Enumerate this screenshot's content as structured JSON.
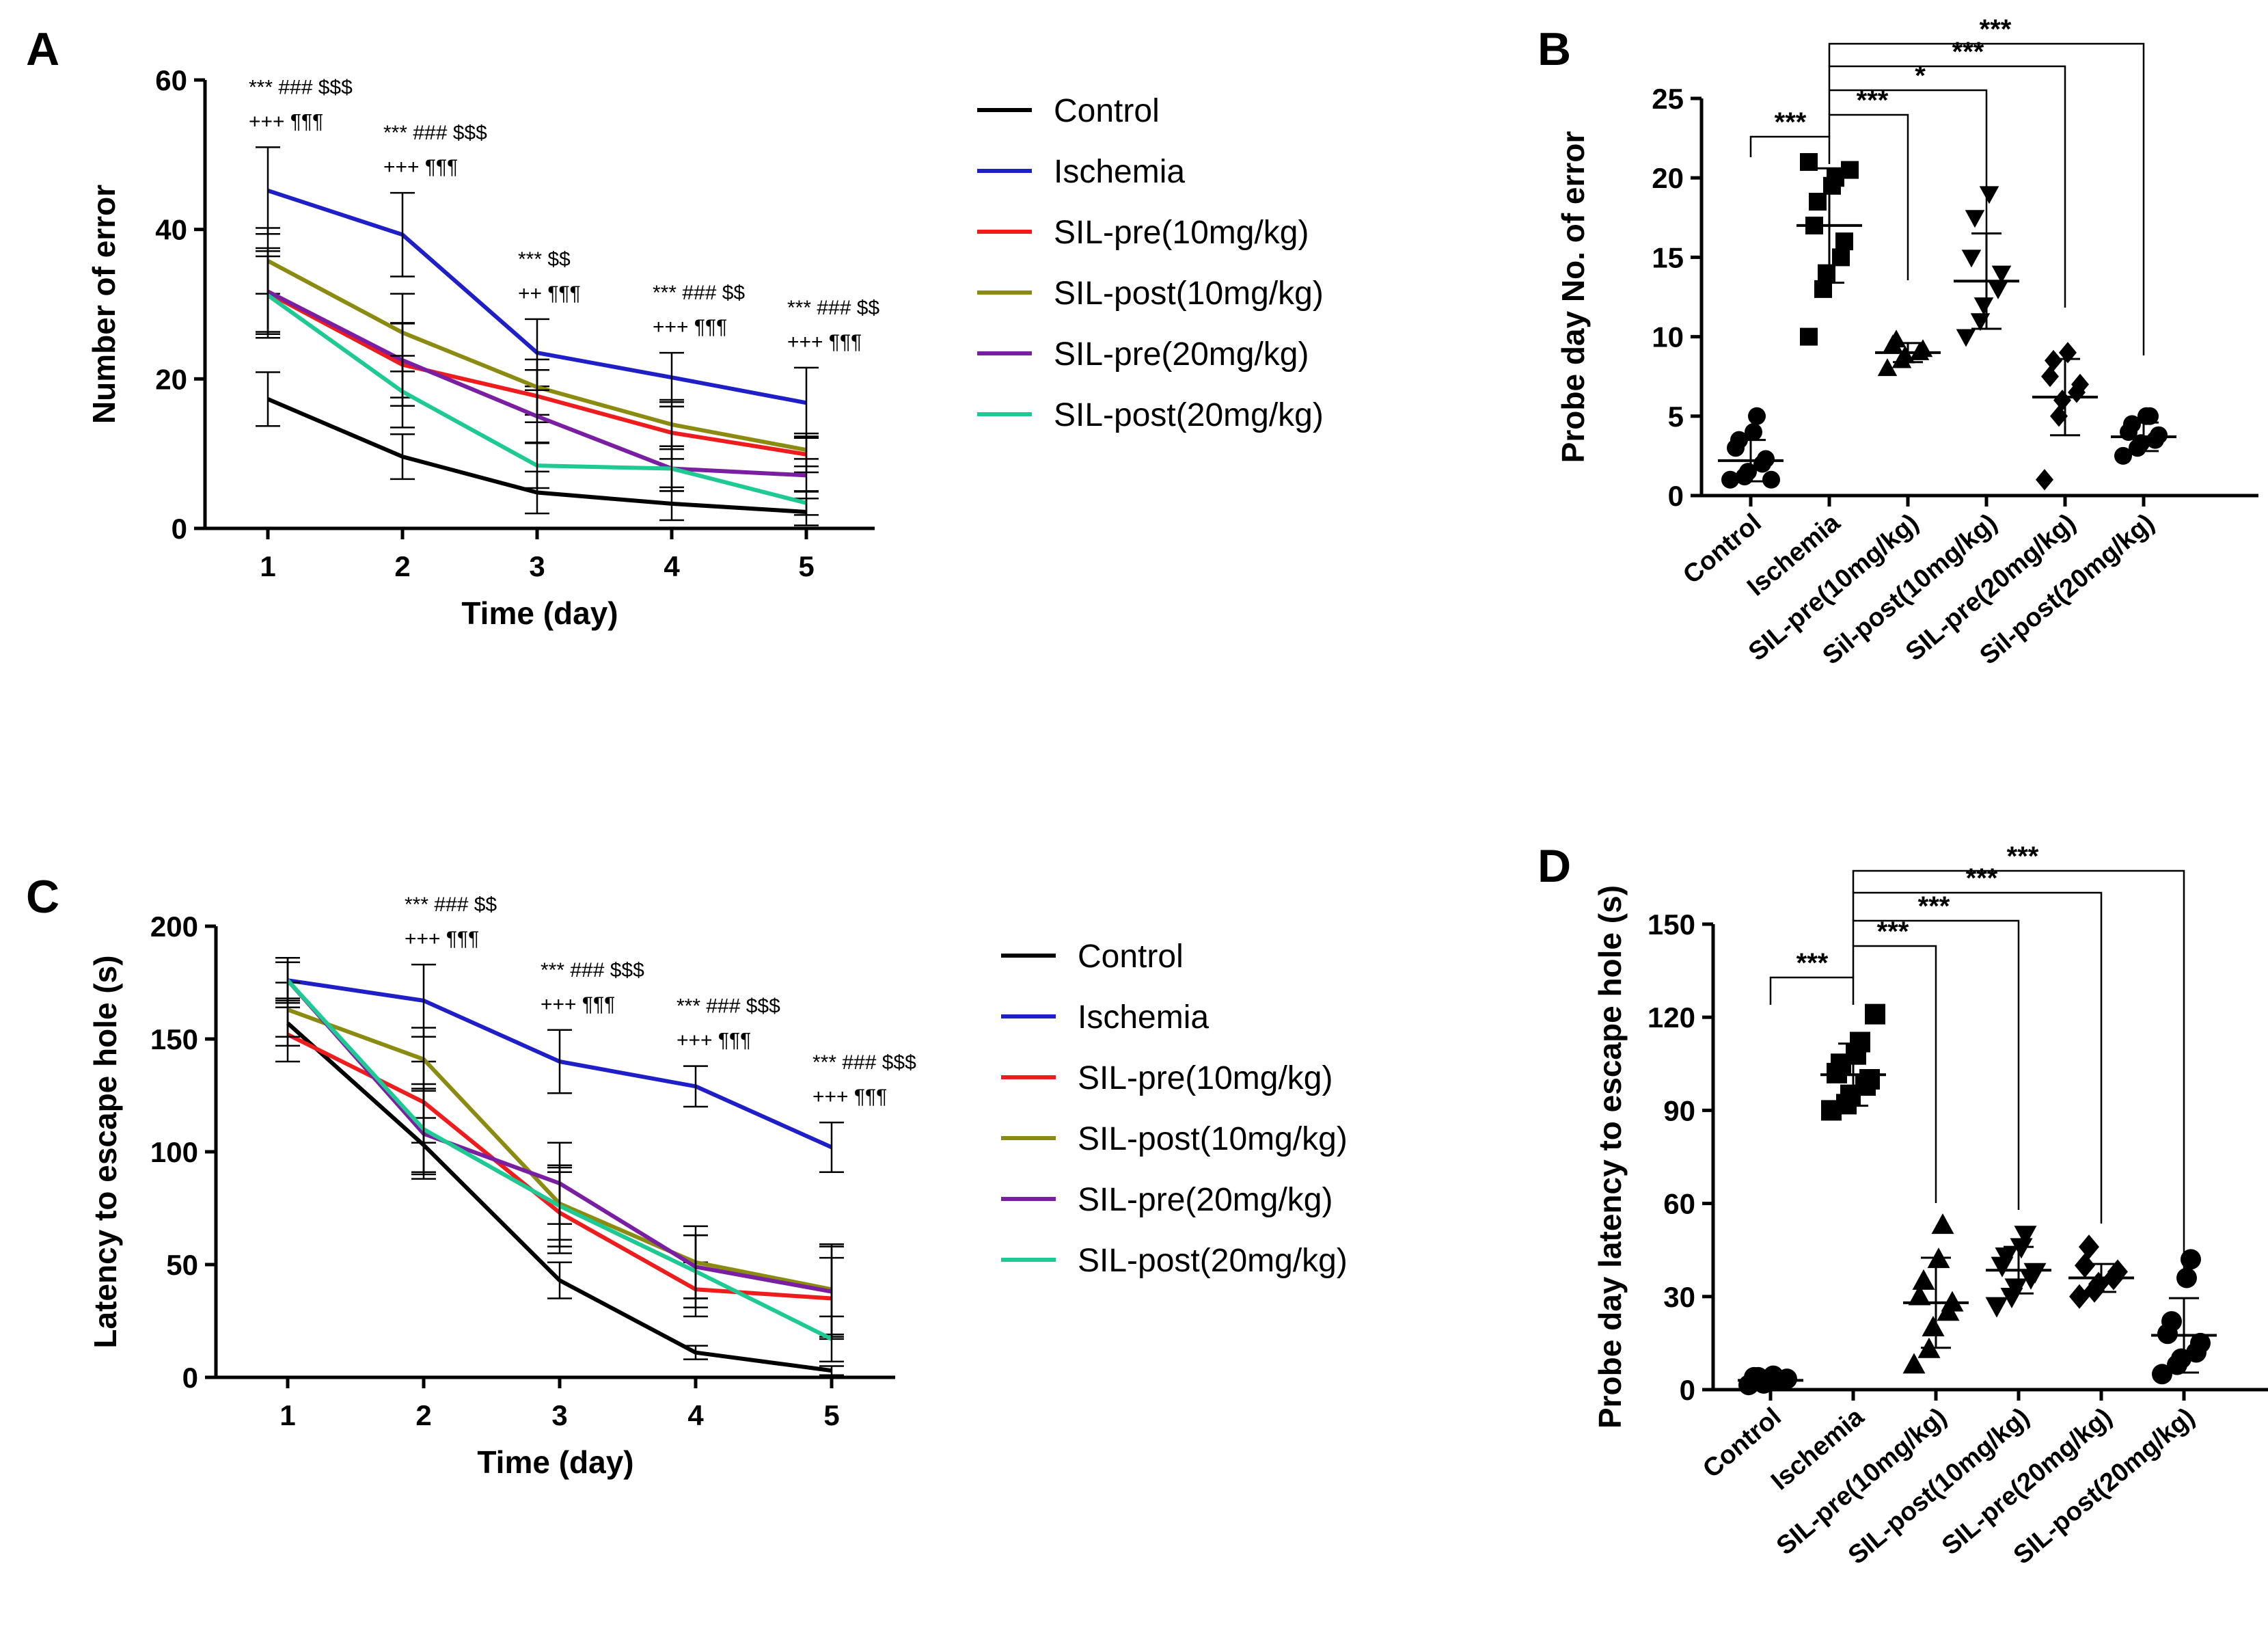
{
  "figure": {
    "panels": [
      "A",
      "B",
      "C",
      "D"
    ]
  },
  "colors": {
    "Control": "#000000",
    "Ischemia": "#1f1fc8",
    "SIL-pre(10mg/kg)": "#ee1c1c",
    "SIL-post(10mg/kg)": "#8b8b12",
    "SIL-pre(20mg/kg)": "#7b1fa2",
    "SIL-post(20mg/kg)": "#1ec993"
  },
  "chart_data": [
    {
      "panel": "A",
      "type": "line",
      "xlabel": "Time (day)",
      "ylabel": "Number of error",
      "ylim": [
        0,
        60
      ],
      "yticks": [
        0,
        20,
        40,
        60
      ],
      "x": [
        1,
        2,
        3,
        4,
        5
      ],
      "legend_position": "right",
      "series": [
        {
          "name": "Control",
          "values": [
            17.3,
            9.6,
            4.8,
            3.3,
            2.2
          ],
          "errors": [
            3.6,
            3.0,
            2.8,
            2.2,
            1.8
          ]
        },
        {
          "name": "Ischemia",
          "values": [
            45.2,
            39.3,
            23.5,
            20.2,
            16.8
          ],
          "errors": [
            5.8,
            5.6,
            4.5,
            3.3,
            4.7
          ]
        },
        {
          "name": "SIL-pre(10mg/kg)",
          "values": [
            31.5,
            21.9,
            17.7,
            12.8,
            9.9
          ],
          "errors": [
            6.0,
            5.5,
            3.5,
            3.5,
            2.4
          ]
        },
        {
          "name": "SIL-post(10mg/kg)",
          "values": [
            35.8,
            26.2,
            18.9,
            13.9,
            10.5
          ],
          "errors": [
            4.4,
            5.2,
            3.7,
            3.3,
            2.2
          ]
        },
        {
          "name": "SIL-pre(20mg/kg)",
          "values": [
            31.7,
            22.5,
            15.0,
            8.0,
            7.1
          ],
          "errors": [
            5.4,
            5.0,
            3.5,
            3.0,
            2.2
          ]
        },
        {
          "name": "SIL-post(20mg/kg)",
          "values": [
            31.2,
            18.3,
            8.4,
            8.0,
            3.4
          ],
          "errors": [
            5.2,
            4.8,
            3.0,
            3.0,
            1.6
          ]
        }
      ],
      "annotations": [
        {
          "x": 1,
          "line1": "*** ### $$$",
          "line2": "+++ ¶¶¶"
        },
        {
          "x": 2,
          "line1": "*** ### $$$",
          "line2": "+++ ¶¶¶"
        },
        {
          "x": 3,
          "line1": "*** $$",
          "line2": "++ ¶¶¶"
        },
        {
          "x": 4,
          "line1": "*** ### $$",
          "line2": "+++ ¶¶¶"
        },
        {
          "x": 5,
          "line1": "*** ### $$",
          "line2": "+++ ¶¶¶"
        }
      ]
    },
    {
      "panel": "B",
      "type": "scatter",
      "ylabel": "Probe day No. of error",
      "ylim": [
        0,
        25
      ],
      "yticks": [
        0,
        5,
        10,
        15,
        20,
        25
      ],
      "categories": [
        "Control",
        "Ischemia",
        "SIL-pre(10mg/kg)",
        "Sil-post(10mg/kg)",
        "SIL-pre(20mg/kg)",
        "Sil-post(20mg/kg)"
      ],
      "markers": [
        "circle",
        "square",
        "triangle-up",
        "triangle-down",
        "diamond",
        "circle"
      ],
      "means": [
        2.2,
        17.0,
        9.0,
        13.5,
        6.2,
        3.7
      ],
      "sd": [
        1.3,
        3.6,
        0.6,
        3.0,
        2.4,
        0.9
      ],
      "points": [
        [
          1.0,
          1.2,
          1.5,
          2.0,
          2.3,
          3.0,
          3.5,
          4.0,
          5.0,
          1.0
        ],
        [
          10.0,
          13.0,
          14.0,
          15.0,
          16.0,
          17.0,
          18.5,
          19.5,
          20.0,
          20.5,
          21.0
        ],
        [
          8.0,
          8.5,
          8.8,
          9.0,
          9.2,
          9.5,
          9.8
        ],
        [
          10.0,
          11.0,
          12.0,
          13.0,
          14.0,
          15.0,
          17.5,
          19.0
        ],
        [
          1.0,
          5.0,
          6.0,
          6.5,
          7.0,
          7.5,
          8.5,
          9.0
        ],
        [
          2.5,
          3.0,
          3.3,
          3.5,
          3.8,
          4.0,
          4.5,
          5.0,
          5.0
        ]
      ],
      "comparisons": [
        {
          "from": 0,
          "to": 1,
          "label": "***"
        },
        {
          "from": 1,
          "to": 2,
          "label": "***"
        },
        {
          "from": 1,
          "to": 3,
          "label": "*"
        },
        {
          "from": 1,
          "to": 4,
          "label": "***"
        },
        {
          "from": 1,
          "to": 5,
          "label": "***"
        }
      ]
    },
    {
      "panel": "C",
      "type": "line",
      "xlabel": "Time (day)",
      "ylabel": "Latency to escape hole (s)",
      "ylim": [
        0,
        200
      ],
      "yticks": [
        0,
        50,
        100,
        150,
        200
      ],
      "x": [
        1,
        2,
        3,
        4,
        5
      ],
      "legend_position": "right",
      "series": [
        {
          "name": "Control",
          "values": [
            157,
            103,
            43,
            11,
            3
          ],
          "errors": [
            10,
            12,
            8,
            3,
            2
          ]
        },
        {
          "name": "Ischemia",
          "values": [
            176,
            167,
            140,
            129,
            102
          ],
          "errors": [
            8,
            16,
            14,
            9,
            11
          ]
        },
        {
          "name": "SIL-pre(10mg/kg)",
          "values": [
            152,
            122,
            73,
            39,
            35
          ],
          "errors": [
            12,
            18,
            18,
            12,
            18
          ]
        },
        {
          "name": "SIL-post(10mg/kg)",
          "values": [
            163,
            141,
            77,
            51,
            39
          ],
          "errors": [
            12,
            14,
            16,
            16,
            20
          ]
        },
        {
          "name": "SIL-pre(20mg/kg)",
          "values": [
            176,
            108,
            86,
            49,
            38
          ],
          "errors": [
            10,
            20,
            18,
            14,
            20
          ]
        },
        {
          "name": "SIL-post(20mg/kg)",
          "values": [
            176,
            110,
            76,
            47,
            17
          ],
          "errors": [
            10,
            20,
            18,
            16,
            10
          ]
        }
      ],
      "annotations": [
        {
          "x": 2,
          "line1": "*** ### $$",
          "line2": "+++ ¶¶¶"
        },
        {
          "x": 3,
          "line1": "*** ### $$$",
          "line2": "+++ ¶¶¶"
        },
        {
          "x": 4,
          "line1": "*** ### $$$",
          "line2": "+++ ¶¶¶"
        },
        {
          "x": 5,
          "line1": "*** ### $$$",
          "line2": "+++ ¶¶¶"
        }
      ]
    },
    {
      "panel": "D",
      "type": "scatter",
      "ylabel": "Probe day latency to escape hole (s)",
      "ylim": [
        0,
        150
      ],
      "yticks": [
        0,
        30,
        60,
        90,
        120,
        150
      ],
      "categories": [
        "Control",
        "Ischemia",
        "SIL-pre(10mg/kg)",
        "SIL-post(10mg/kg)",
        "SIL-pre(20mg/kg)",
        "SIL-post(20mg/kg)"
      ],
      "markers": [
        "circle",
        "square",
        "triangle-up",
        "triangle-down",
        "diamond",
        "circle"
      ],
      "means": [
        3.0,
        101.5,
        28.0,
        38.5,
        36.0,
        17.5
      ],
      "sd": [
        1.0,
        10.0,
        14.5,
        7.5,
        4.5,
        12.0
      ],
      "points": [
        [
          1.5,
          2.0,
          2.5,
          3.0,
          3.5,
          4.0,
          4.0,
          4.5
        ],
        [
          90,
          92,
          95,
          98,
          100,
          102,
          105,
          108,
          112,
          121
        ],
        [
          8,
          13,
          20,
          25,
          28,
          30,
          35,
          42,
          53
        ],
        [
          27,
          30,
          33,
          36,
          38,
          40,
          43,
          46,
          50
        ],
        [
          30,
          32,
          34,
          36,
          38,
          40,
          46
        ],
        [
          5,
          8,
          10,
          12,
          15,
          18,
          22,
          36,
          42
        ]
      ],
      "comparisons": [
        {
          "from": 0,
          "to": 1,
          "label": "***"
        },
        {
          "from": 1,
          "to": 2,
          "label": "***"
        },
        {
          "from": 1,
          "to": 3,
          "label": "***"
        },
        {
          "from": 1,
          "to": 4,
          "label": "***"
        },
        {
          "from": 1,
          "to": 5,
          "label": "***"
        }
      ]
    }
  ]
}
